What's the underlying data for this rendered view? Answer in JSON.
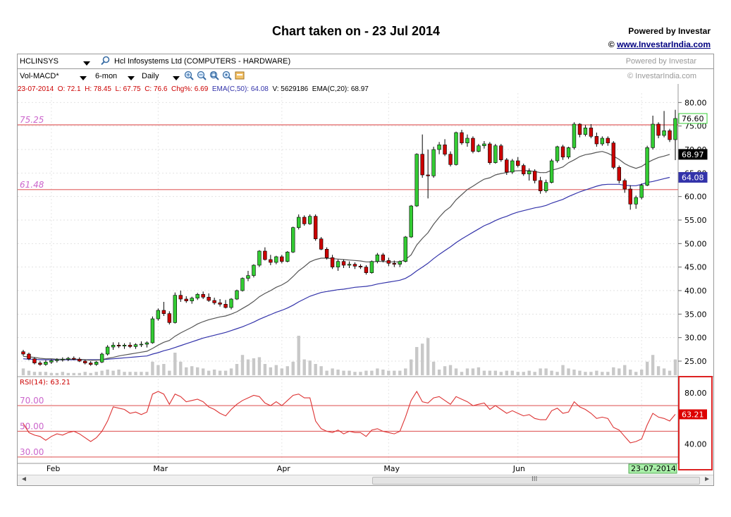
{
  "page": {
    "title": "Chart taken on - 23 Jul 2014",
    "powered": "Powered by Investar",
    "copyright_symbol": "©",
    "copyright_link": "www.InvestarIndia.com"
  },
  "toolbar": {
    "symbol": "HCLINSYS",
    "company": "Hcl Infosystems Ltd  (COMPUTERS - HARDWARE)",
    "powered_gray": "Powered by Investar",
    "indicator": "Vol-MACD*",
    "range": "6-mon",
    "interval": "Daily",
    "copyright_gray": "© InvestarIndia.com"
  },
  "info": {
    "date": "23-07-2014",
    "open": "O: 72.1",
    "high": "H: 78.45",
    "low": "L: 67.75",
    "close": "C: 76.6",
    "chg": "Chg%: 6.69",
    "ema50_label": "EMA(C,50):",
    "ema50_value": "64.08",
    "vol": "V: 5629186",
    "ema20_label": "EMA(C,20):",
    "ema20_value": "68.97"
  },
  "colors": {
    "up": "#33cc33",
    "down": "#cc0000",
    "ema20": "#555555",
    "ema50": "#3333aa",
    "volume": "#c8c8c8",
    "hline": "#e06060",
    "level_text": "#cc66cc",
    "rsi": "#dd3333"
  },
  "chart_data": {
    "type": "candlestick",
    "title": "Chart taken on - 23 Jul 2014",
    "ylim": [
      22,
      82
    ],
    "yticks": [
      "80.00",
      "75.00",
      "70.00",
      "65.00",
      "60.00",
      "55.00",
      "50.00",
      "45.00",
      "40.00",
      "35.00",
      "30.00",
      "25.00"
    ],
    "xticks": [
      "Feb",
      "Mar",
      "Apr",
      "May",
      "Jun",
      "Jul"
    ],
    "xtick_index": [
      5,
      24,
      46,
      65,
      88,
      110
    ],
    "last_date_label": "23-07-2014",
    "levels": [
      {
        "value": 75.25,
        "label": "75.25"
      },
      {
        "value": 61.48,
        "label": "61.48"
      }
    ],
    "price_badges": [
      {
        "value": 76.6,
        "label": "76.60",
        "kind": "close"
      },
      {
        "value": 68.97,
        "label": "68.97",
        "kind": "ema20"
      },
      {
        "value": 64.08,
        "label": "64.08",
        "kind": "ema50"
      }
    ],
    "candles": [
      [
        27.0,
        27.4,
        26.1,
        26.5
      ],
      [
        26.5,
        26.8,
        25.2,
        25.5
      ],
      [
        25.5,
        25.8,
        24.3,
        24.6
      ],
      [
        24.6,
        25.0,
        24.0,
        24.3
      ],
      [
        24.3,
        25.2,
        24.0,
        24.8
      ],
      [
        24.8,
        25.4,
        24.4,
        25.1
      ],
      [
        25.1,
        25.6,
        24.7,
        25.3
      ],
      [
        25.3,
        25.8,
        24.9,
        25.4
      ],
      [
        25.4,
        25.9,
        25.0,
        25.6
      ],
      [
        25.6,
        26.0,
        25.2,
        25.4
      ],
      [
        25.4,
        25.8,
        24.8,
        25.0
      ],
      [
        25.0,
        25.3,
        24.3,
        24.6
      ],
      [
        24.6,
        25.0,
        24.0,
        24.3
      ],
      [
        24.3,
        25.0,
        24.0,
        24.8
      ],
      [
        24.8,
        26.8,
        24.6,
        26.5
      ],
      [
        26.5,
        28.4,
        26.2,
        28.0
      ],
      [
        28.0,
        29.0,
        27.4,
        28.4
      ],
      [
        28.4,
        29.0,
        27.8,
        28.2
      ],
      [
        28.2,
        28.8,
        27.6,
        28.4
      ],
      [
        28.4,
        29.0,
        27.8,
        28.1
      ],
      [
        28.1,
        28.8,
        27.6,
        28.5
      ],
      [
        28.5,
        29.2,
        28.0,
        28.6
      ],
      [
        28.6,
        29.2,
        27.9,
        28.9
      ],
      [
        28.9,
        34.5,
        28.7,
        34.0
      ],
      [
        34.0,
        36.2,
        33.6,
        35.8
      ],
      [
        35.8,
        37.6,
        34.6,
        35.1
      ],
      [
        35.1,
        35.6,
        32.8,
        33.2
      ],
      [
        33.2,
        39.6,
        33.0,
        39.0
      ],
      [
        39.0,
        40.0,
        37.6,
        38.2
      ],
      [
        38.2,
        38.8,
        37.4,
        37.8
      ],
      [
        37.8,
        38.7,
        37.2,
        38.4
      ],
      [
        38.4,
        39.5,
        38.0,
        39.2
      ],
      [
        39.2,
        39.8,
        38.2,
        38.6
      ],
      [
        38.6,
        39.4,
        37.6,
        37.9
      ],
      [
        37.9,
        38.5,
        37.0,
        37.4
      ],
      [
        37.4,
        38.2,
        36.6,
        37.1
      ],
      [
        37.1,
        38.0,
        36.2,
        36.4
      ],
      [
        36.4,
        38.4,
        36.0,
        38.2
      ],
      [
        38.2,
        40.2,
        38.0,
        40.0
      ],
      [
        40.0,
        42.8,
        39.8,
        42.6
      ],
      [
        42.6,
        44.2,
        42.0,
        43.2
      ],
      [
        43.2,
        45.6,
        42.8,
        45.4
      ],
      [
        45.4,
        48.6,
        45.0,
        48.4
      ],
      [
        48.4,
        49.2,
        46.4,
        46.6
      ],
      [
        46.6,
        47.6,
        45.4,
        46.0
      ],
      [
        46.0,
        47.4,
        45.6,
        47.2
      ],
      [
        47.2,
        47.6,
        45.8,
        46.2
      ],
      [
        46.2,
        48.4,
        46.0,
        48.2
      ],
      [
        48.2,
        53.6,
        48.0,
        53.4
      ],
      [
        53.4,
        56.2,
        53.0,
        55.6
      ],
      [
        55.6,
        56.0,
        53.8,
        54.2
      ],
      [
        54.2,
        56.2,
        54.0,
        55.8
      ],
      [
        55.8,
        56.2,
        50.6,
        51.0
      ],
      [
        51.0,
        51.4,
        48.6,
        48.8
      ],
      [
        48.8,
        49.2,
        46.6,
        47.0
      ],
      [
        47.0,
        47.6,
        44.6,
        45.0
      ],
      [
        45.0,
        46.6,
        44.2,
        46.2
      ],
      [
        46.2,
        46.6,
        44.8,
        45.4
      ],
      [
        45.4,
        46.2,
        44.8,
        45.6
      ],
      [
        45.6,
        46.0,
        44.6,
        45.2
      ],
      [
        45.2,
        45.6,
        44.6,
        45.0
      ],
      [
        45.0,
        45.4,
        43.4,
        43.8
      ],
      [
        43.8,
        46.4,
        43.6,
        46.2
      ],
      [
        46.2,
        48.0,
        45.8,
        47.6
      ],
      [
        47.6,
        48.0,
        46.0,
        46.4
      ],
      [
        46.4,
        47.0,
        45.2,
        45.8
      ],
      [
        45.8,
        46.4,
        45.0,
        45.6
      ],
      [
        45.6,
        46.4,
        45.0,
        46.2
      ],
      [
        46.2,
        51.6,
        46.0,
        51.4
      ],
      [
        51.4,
        58.2,
        51.2,
        58.0
      ],
      [
        58.0,
        69.2,
        57.8,
        69.0
      ],
      [
        69.0,
        73.2,
        64.0,
        64.6
      ],
      [
        64.6,
        70.0,
        59.6,
        64.4
      ],
      [
        64.4,
        70.6,
        64.0,
        70.0
      ],
      [
        70.0,
        71.6,
        69.0,
        71.0
      ],
      [
        71.0,
        72.2,
        68.6,
        69.0
      ],
      [
        69.0,
        69.6,
        66.4,
        66.8
      ],
      [
        66.8,
        73.8,
        66.6,
        73.6
      ],
      [
        73.6,
        74.2,
        71.0,
        71.4
      ],
      [
        71.4,
        73.2,
        70.6,
        72.4
      ],
      [
        72.4,
        72.8,
        69.2,
        69.6
      ],
      [
        69.6,
        71.2,
        69.4,
        70.8
      ],
      [
        70.8,
        71.8,
        70.2,
        71.2
      ],
      [
        71.2,
        71.6,
        66.8,
        67.2
      ],
      [
        67.2,
        71.2,
        67.0,
        70.8
      ],
      [
        70.8,
        71.2,
        67.4,
        67.8
      ],
      [
        67.8,
        68.2,
        64.6,
        65.2
      ],
      [
        65.2,
        68.0,
        64.8,
        67.6
      ],
      [
        67.6,
        68.4,
        66.2,
        66.6
      ],
      [
        66.6,
        67.0,
        64.4,
        64.8
      ],
      [
        64.8,
        66.0,
        63.4,
        65.4
      ],
      [
        65.4,
        65.8,
        62.8,
        63.4
      ],
      [
        63.4,
        64.2,
        60.6,
        61.2
      ],
      [
        61.2,
        63.6,
        60.8,
        63.0
      ],
      [
        63.0,
        68.0,
        62.8,
        67.6
      ],
      [
        67.6,
        70.8,
        67.2,
        70.6
      ],
      [
        70.6,
        71.0,
        67.8,
        68.4
      ],
      [
        68.4,
        70.6,
        68.0,
        70.4
      ],
      [
        70.4,
        75.8,
        70.0,
        75.4
      ],
      [
        75.4,
        75.6,
        72.6,
        73.2
      ],
      [
        73.2,
        75.2,
        72.8,
        74.6
      ],
      [
        74.6,
        75.4,
        72.4,
        72.8
      ],
      [
        72.8,
        73.6,
        70.6,
        71.2
      ],
      [
        71.2,
        72.8,
        70.8,
        72.4
      ],
      [
        72.4,
        72.8,
        70.8,
        71.4
      ],
      [
        71.4,
        71.8,
        65.8,
        66.2
      ],
      [
        66.2,
        66.6,
        62.8,
        63.4
      ],
      [
        63.4,
        63.8,
        60.8,
        61.6
      ],
      [
        61.6,
        62.4,
        57.2,
        58.4
      ],
      [
        58.4,
        60.2,
        57.4,
        59.8
      ],
      [
        59.8,
        62.8,
        59.4,
        62.4
      ],
      [
        62.4,
        70.8,
        62.2,
        70.4
      ],
      [
        70.4,
        77.2,
        70.0,
        75.4
      ],
      [
        75.4,
        75.8,
        72.4,
        73.0
      ],
      [
        73.0,
        78.2,
        72.6,
        74.0
      ],
      [
        74.0,
        74.4,
        71.6,
        72.1
      ],
      [
        72.1,
        78.45,
        67.75,
        76.6
      ]
    ],
    "ema20": [
      26.0,
      25.9,
      25.8,
      25.6,
      25.5,
      25.5,
      25.4,
      25.4,
      25.4,
      25.4,
      25.4,
      25.3,
      25.2,
      25.2,
      25.3,
      25.6,
      25.8,
      26.1,
      26.3,
      26.5,
      26.7,
      26.9,
      27.1,
      27.7,
      28.4,
      29.0,
      29.4,
      30.3,
      31.0,
      31.6,
      32.2,
      32.9,
      33.4,
      33.8,
      34.1,
      34.4,
      34.6,
      35.0,
      35.5,
      36.2,
      36.9,
      37.7,
      38.7,
      39.4,
      40.0,
      40.7,
      41.2,
      41.9,
      43.0,
      44.2,
      45.1,
      46.1,
      46.6,
      46.9,
      46.9,
      46.8,
      46.7,
      46.6,
      46.5,
      46.4,
      46.3,
      46.1,
      46.1,
      46.2,
      46.2,
      46.1,
      46.1,
      46.1,
      46.6,
      47.6,
      49.7,
      51.1,
      52.3,
      54.1,
      55.6,
      56.9,
      57.8,
      59.3,
      60.4,
      61.5,
      62.2,
      63.0,
      63.7,
      64.0,
      64.6,
      64.9,
      65.1,
      65.4,
      65.5,
      65.5,
      65.5,
      65.3,
      65.1,
      65.1,
      65.6,
      65.9,
      66.3,
      67.2,
      67.8,
      68.5,
      68.9,
      69.1,
      69.4,
      69.6,
      69.2,
      68.6,
      67.9,
      67.0,
      66.4,
      66.0,
      66.4,
      67.2,
      67.8,
      68.3,
      68.6,
      68.97
    ],
    "ema50": [
      25.5,
      25.4,
      25.4,
      25.3,
      25.3,
      25.3,
      25.3,
      25.3,
      25.3,
      25.3,
      25.3,
      25.3,
      25.3,
      25.3,
      25.3,
      25.4,
      25.5,
      25.6,
      25.7,
      25.8,
      25.9,
      26.0,
      26.1,
      26.5,
      26.8,
      27.2,
      27.5,
      27.9,
      28.3,
      28.7,
      29.1,
      29.5,
      29.9,
      30.2,
      30.5,
      30.8,
      31.1,
      31.5,
      31.9,
      32.3,
      32.8,
      33.3,
      33.9,
      34.4,
      34.9,
      35.4,
      35.8,
      36.3,
      36.9,
      37.6,
      38.2,
      38.8,
      39.2,
      39.6,
      39.8,
      40.0,
      40.2,
      40.3,
      40.5,
      40.7,
      40.8,
      40.9,
      41.1,
      41.4,
      41.6,
      41.8,
      42.0,
      42.2,
      42.6,
      43.3,
      44.2,
      45.0,
      45.8,
      46.8,
      47.7,
      48.5,
      49.3,
      50.2,
      51.0,
      51.7,
      52.4,
      53.1,
      53.8,
      54.3,
      54.9,
      55.4,
      55.8,
      56.3,
      56.7,
      57.0,
      57.3,
      57.6,
      57.8,
      58.1,
      58.6,
      59.0,
      59.4,
      60.0,
      60.5,
      61.0,
      61.4,
      61.8,
      62.2,
      62.5,
      62.6,
      62.6,
      62.6,
      62.4,
      62.3,
      62.3,
      62.6,
      63.0,
      63.2,
      63.5,
      63.8,
      64.08
    ],
    "volume": [
      6,
      4,
      3,
      3,
      3,
      2,
      2,
      3,
      2,
      2,
      2,
      3,
      2,
      3,
      4,
      5,
      4,
      5,
      3,
      3,
      3,
      3,
      3,
      12,
      9,
      10,
      4,
      20,
      12,
      7,
      8,
      7,
      6,
      4,
      5,
      4,
      4,
      6,
      10,
      18,
      14,
      15,
      16,
      10,
      7,
      9,
      6,
      8,
      12,
      35,
      14,
      13,
      10,
      8,
      4,
      6,
      5,
      4,
      4,
      3,
      3,
      4,
      4,
      6,
      5,
      4,
      4,
      4,
      6,
      14,
      25,
      28,
      33,
      12,
      5,
      8,
      9,
      6,
      3,
      6,
      6,
      7,
      4,
      4,
      4,
      3,
      4,
      4,
      3,
      3,
      4,
      3,
      6,
      6,
      4,
      3,
      9,
      6,
      5,
      4,
      3,
      3,
      4,
      3,
      3,
      7,
      6,
      9,
      5,
      3,
      5,
      12,
      18,
      8,
      6,
      4,
      14
    ],
    "volume_ylim": [
      0,
      100
    ],
    "rsi_label": "RSI(14):",
    "rsi_value": "63.21",
    "rsi": [
      56,
      49,
      47,
      46,
      43,
      46,
      48,
      47,
      49,
      50,
      48,
      45,
      42,
      45,
      50,
      58,
      69,
      68,
      67,
      64,
      65,
      63,
      65,
      79,
      81,
      79,
      71,
      79,
      77,
      73,
      74,
      75,
      73,
      69,
      67,
      64,
      62,
      67,
      71,
      74,
      76,
      78,
      77,
      72,
      70,
      73,
      70,
      74,
      78,
      79,
      76,
      76,
      58,
      52,
      50,
      49,
      51,
      48,
      50,
      49,
      49,
      46,
      51,
      52,
      50,
      49,
      48,
      50,
      61,
      74,
      81,
      73,
      72,
      76,
      77,
      74,
      71,
      77,
      75,
      73,
      70,
      71,
      72,
      67,
      70,
      67,
      64,
      66,
      64,
      62,
      63,
      60,
      59,
      59,
      66,
      68,
      64,
      65,
      73,
      69,
      67,
      64,
      60,
      61,
      60,
      53,
      51,
      46,
      41,
      42,
      44,
      55,
      64,
      61,
      60,
      58,
      63.21
    ],
    "rsi_ylim": [
      25,
      92
    ],
    "rsi_levels": [
      "70.00",
      "50.00",
      "30.00"
    ],
    "rsi_level_values": [
      70,
      50,
      30
    ],
    "rsi_yticks": [
      "80.00",
      "40.00"
    ],
    "rsi_ytick_values": [
      80,
      40
    ]
  }
}
